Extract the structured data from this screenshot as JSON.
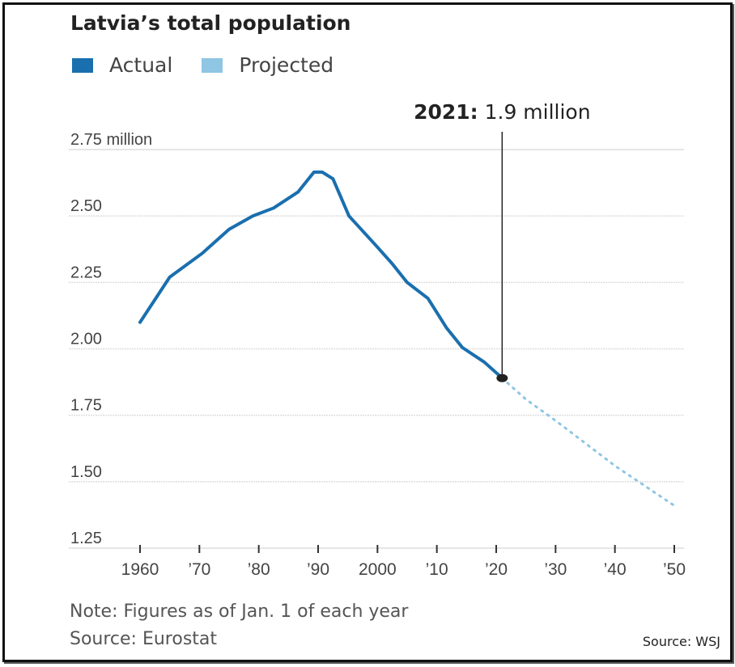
{
  "chart_data": {
    "type": "line",
    "title": "Latvia’s total population",
    "legend": [
      {
        "name": "Actual",
        "color": "#1a6fae"
      },
      {
        "name": "Projected",
        "color": "#8ec6e3"
      }
    ],
    "legend_placement": "top-left",
    "ylim": [
      1.25,
      2.75
    ],
    "xlim": [
      1960,
      2050
    ],
    "yticks": [
      {
        "value": 2.75,
        "label": "2.75 million"
      },
      {
        "value": 2.5,
        "label": "2.50"
      },
      {
        "value": 2.25,
        "label": "2.25"
      },
      {
        "value": 2.0,
        "label": "2.00"
      },
      {
        "value": 1.75,
        "label": "1.75"
      },
      {
        "value": 1.5,
        "label": "1.50"
      },
      {
        "value": 1.25,
        "label": "1.25"
      }
    ],
    "xticks": [
      {
        "value": 1960,
        "label": "1960"
      },
      {
        "value": 1970,
        "label": "’70"
      },
      {
        "value": 1980,
        "label": "’80"
      },
      {
        "value": 1990,
        "label": "’90"
      },
      {
        "value": 2000,
        "label": "2000"
      },
      {
        "value": 2010,
        "label": "’10"
      },
      {
        "value": 2020,
        "label": "’20"
      },
      {
        "value": 2030,
        "label": "’30"
      },
      {
        "value": 2040,
        "label": "’40"
      },
      {
        "value": 2050,
        "label": "’50"
      }
    ],
    "series": [
      {
        "name": "Actual",
        "x": [
          1960,
          1965,
          1970.5,
          1975,
          1979,
          1982.5,
          1986.6,
          1989.3,
          1990.7,
          1992.5,
          1995.2,
          1999.7,
          2002.5,
          2005,
          2008.5,
          2011.6,
          2014.3,
          2018,
          2021
        ],
        "values": [
          2.1,
          2.27,
          2.36,
          2.45,
          2.5,
          2.53,
          2.59,
          2.665,
          2.665,
          2.64,
          2.5,
          2.39,
          2.32,
          2.25,
          2.19,
          2.08,
          2.005,
          1.95,
          1.89
        ]
      },
      {
        "name": "Projected",
        "x": [
          2021,
          2025,
          2030,
          2035,
          2040,
          2045,
          2050
        ],
        "values": [
          1.89,
          1.81,
          1.73,
          1.645,
          1.56,
          1.485,
          1.41
        ]
      }
    ],
    "annotation": {
      "year": 2021,
      "value": 1.89,
      "bold": "2021:",
      "text": " 1.9 million"
    },
    "grid": true,
    "note": "Note: Figures as of Jan. 1 of each year",
    "source": "Source: Eurostat",
    "credit": "Source: WSJ"
  }
}
